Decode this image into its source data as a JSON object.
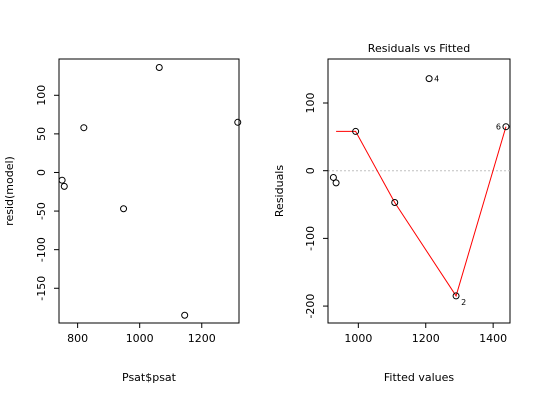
{
  "chart_data": [
    {
      "type": "scatter",
      "title": "",
      "xlabel": "Psat$psat",
      "ylabel": "resid(model)",
      "xlim": [
        740,
        1320
      ],
      "ylim": [
        -195,
        147
      ],
      "x_ticks": [
        800,
        1000,
        1200
      ],
      "y_ticks": [
        -150,
        -100,
        -50,
        0,
        50,
        100
      ],
      "grid": false,
      "legend": "none",
      "points": [
        {
          "x": 820,
          "y": 58
        },
        {
          "x": 948,
          "y": -47
        },
        {
          "x": 1063,
          "y": 136
        },
        {
          "x": 1145,
          "y": -185
        },
        {
          "x": 1316,
          "y": 65
        },
        {
          "x": 750,
          "y": -10
        },
        {
          "x": 757,
          "y": -18
        }
      ]
    },
    {
      "type": "scatter",
      "title": "Residuals vs Fitted",
      "xlabel": "Fitted values",
      "ylabel": "Residuals",
      "xlim": [
        910,
        1450
      ],
      "ylim": [
        -225,
        165
      ],
      "x_ticks": [
        1000,
        1200,
        1400
      ],
      "y_ticks": [
        -200,
        -100,
        0,
        100
      ],
      "grid": false,
      "legend": "none",
      "zero_line": true,
      "line_color": "#ff0000",
      "reference_color": "#c0c0c0",
      "points": [
        {
          "x": 992,
          "y": 58,
          "label": ""
        },
        {
          "x": 1108,
          "y": -47,
          "label": ""
        },
        {
          "x": 1210,
          "y": 136,
          "label": "4"
        },
        {
          "x": 1290,
          "y": -185,
          "label": "2"
        },
        {
          "x": 1438,
          "y": 65,
          "label": "6"
        },
        {
          "x": 926,
          "y": -10,
          "label": ""
        },
        {
          "x": 934,
          "y": -18,
          "label": ""
        }
      ],
      "smooth": [
        {
          "x": 934,
          "y": 58
        },
        {
          "x": 992,
          "y": 58
        },
        {
          "x": 1108,
          "y": -47
        },
        {
          "x": 1290,
          "y": -185
        },
        {
          "x": 1438,
          "y": 65
        }
      ]
    }
  ]
}
